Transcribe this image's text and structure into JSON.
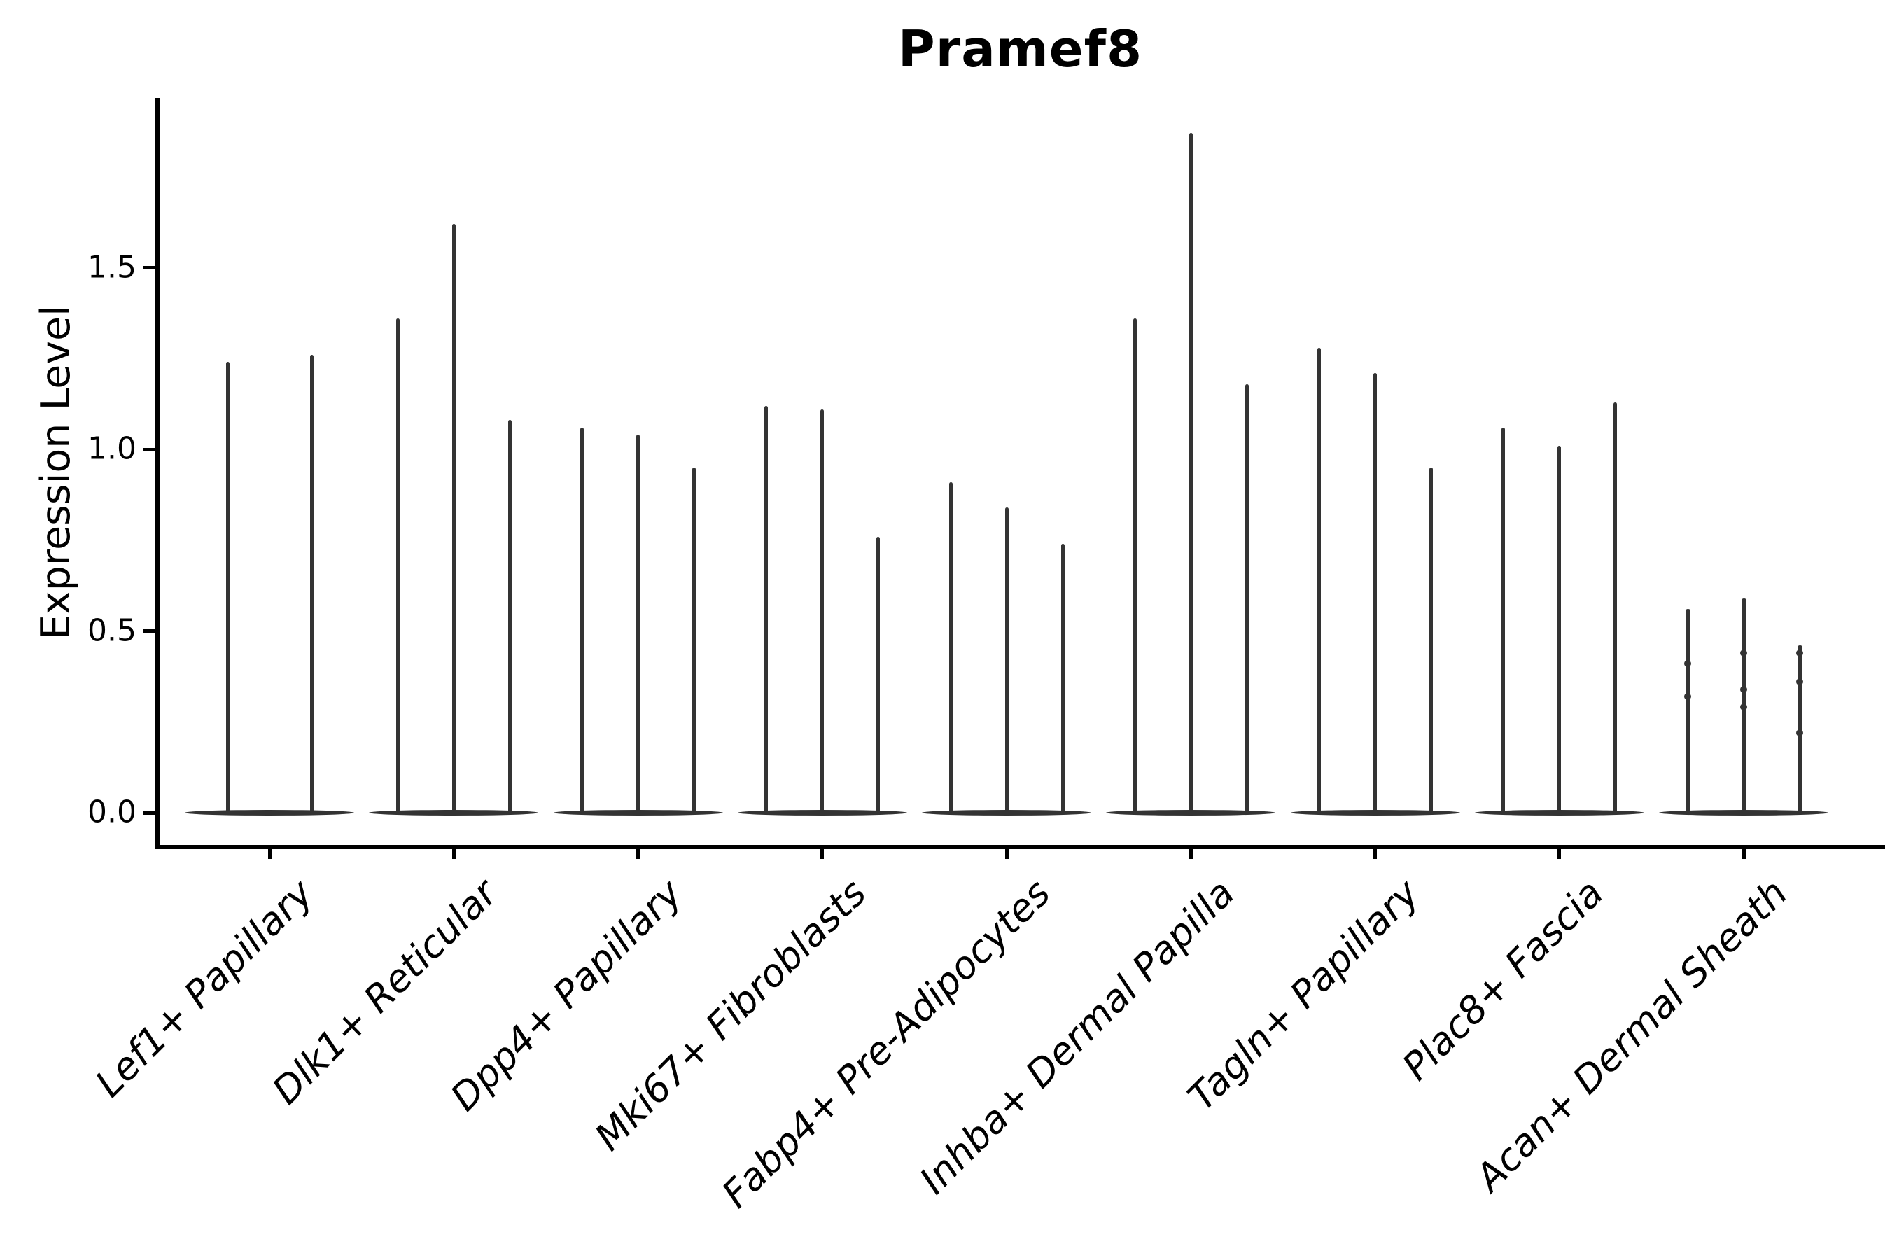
{
  "title": "Pramef8",
  "axis_color": "#000000",
  "violin_color": "#333333",
  "chart_data": {
    "type": "violin",
    "title": "Pramef8",
    "xlabel": "",
    "ylabel": "Expression Level",
    "ylim": [
      0,
      1.98
    ],
    "yticks": [
      0.0,
      0.5,
      1.0,
      1.5
    ],
    "ytick_labels": [
      "0.0",
      "0.5",
      "1.0",
      "1.5"
    ],
    "grid": false,
    "legend": null,
    "categories": [
      "Lef1+ Papillary",
      "Dlk1+ Reticular",
      "Dpp4+ Papillary",
      "Mki67+ Fibroblasts",
      "Fabp4+ Pre-Adipocytes",
      "Inhba+ Dermal Papilla",
      "Tagln+ Papillary",
      "Plac8+ Fascia",
      "Acan+ Dermal Sheath"
    ],
    "series": [
      {
        "category": "Lef1+ Papillary",
        "violin_maxima": [
          1.24,
          1.26
        ],
        "points": [
          [],
          []
        ]
      },
      {
        "category": "Dlk1+ Reticular",
        "violin_maxima": [
          1.36,
          1.62,
          1.08
        ],
        "points": [
          [],
          [],
          []
        ]
      },
      {
        "category": "Dpp4+ Papillary",
        "violin_maxima": [
          1.06,
          1.04,
          0.95
        ],
        "points": [
          [],
          [],
          []
        ]
      },
      {
        "category": "Mki67+ Fibroblasts",
        "violin_maxima": [
          1.12,
          1.11,
          0.76
        ],
        "points": [
          [],
          [],
          []
        ]
      },
      {
        "category": "Fabp4+ Pre-Adipocytes",
        "violin_maxima": [
          0.91,
          0.84,
          0.74
        ],
        "points": [
          [],
          [],
          []
        ]
      },
      {
        "category": "Inhba+ Dermal Papilla",
        "violin_maxima": [
          1.36,
          1.87,
          1.18
        ],
        "points": [
          [],
          [],
          []
        ]
      },
      {
        "category": "Tagln+ Papillary",
        "violin_maxima": [
          1.28,
          1.21,
          0.95
        ],
        "points": [
          [],
          [],
          []
        ]
      },
      {
        "category": "Plac8+ Fascia",
        "violin_maxima": [
          1.06,
          1.01,
          1.13
        ],
        "points": [
          [],
          [],
          []
        ]
      },
      {
        "category": "Acan+ Dermal Sheath",
        "violin_maxima": [
          0.56,
          0.59,
          0.46
        ],
        "points": [
          [
            0.41,
            0.32
          ],
          [
            0.44,
            0.34,
            0.29
          ],
          [
            0.44,
            0.36,
            0.22
          ]
        ],
        "thick_spike": true
      }
    ],
    "note_all_violins_baseline_at": 0.0
  }
}
